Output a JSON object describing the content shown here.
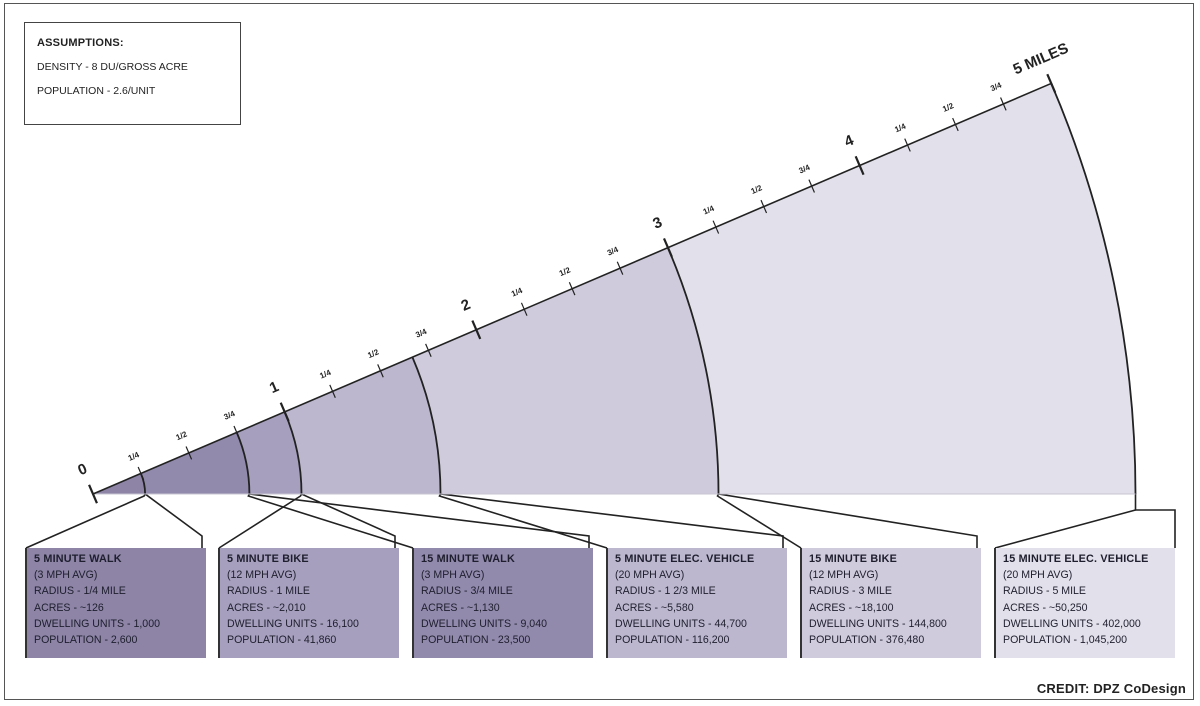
{
  "assumptions": {
    "title": "ASSUMPTIONS:",
    "density": "DENSITY - 8 DU/GROSS ACRE",
    "population": "POPULATION - 2.6/UNIT"
  },
  "axis": {
    "major_labels": [
      "0",
      "1",
      "2",
      "3",
      "4",
      "5 MILES"
    ],
    "fraction_labels": [
      "1/4",
      "1/2",
      "3/4"
    ]
  },
  "cards": [
    {
      "title": "5 MINUTE WALK",
      "speed": "(3 MPH AVG)",
      "radius": "RADIUS - 1/4 MILE",
      "acres": "ACRES - ~126",
      "dwelling": "DWELLING UNITS - 1,000",
      "population": "POPULATION - 2,600",
      "radius_miles": 0.25,
      "color": "#8d84a6"
    },
    {
      "title": "5 MINUTE BIKE",
      "speed": "(12 MPH AVG)",
      "radius": "RADIUS - 1 MILE",
      "acres": "ACRES - ~2,010",
      "dwelling": "DWELLING UNITS - 16,100",
      "population": "POPULATION - 41,860",
      "radius_miles": 1,
      "color": "#a69fbd"
    },
    {
      "title": "15 MINUTE WALK",
      "speed": "(3 MPH AVG)",
      "radius": "RADIUS - 3/4 MILE",
      "acres": "ACRES - ~1,130",
      "dwelling": "DWELLING UNITS - 9,040",
      "population": "POPULATION - 23,500",
      "radius_miles": 0.75,
      "color": "#928aac"
    },
    {
      "title": "5 MINUTE ELEC. VEHICLE",
      "speed": "(20 MPH AVG)",
      "radius": "RADIUS - 1 2/3 MILE",
      "acres": "ACRES - ~5,580",
      "dwelling": "DWELLING UNITS - 44,700",
      "population": "POPULATION - 116,200",
      "radius_miles": 1.6667,
      "color": "#bcb7ce"
    },
    {
      "title": "15 MINUTE BIKE",
      "speed": "(12 MPH AVG)",
      "radius": "RADIUS - 3 MILE",
      "acres": "ACRES - ~18,100",
      "dwelling": "DWELLING UNITS - 144,800",
      "population": "POPULATION - 376,480",
      "radius_miles": 3,
      "color": "#cfcbdc"
    },
    {
      "title": "15 MINUTE ELEC. VEHICLE",
      "speed": "(20 MPH AVG)",
      "radius": "RADIUS - 5 MILE",
      "acres": "ACRES - ~50,250",
      "dwelling": "DWELLING UNITS - 402,000",
      "population": "POPULATION - 1,045,200",
      "radius_miles": 5,
      "color": "#e2e0ea"
    }
  ],
  "credit": "CREDIT: DPZ CoDesign"
}
